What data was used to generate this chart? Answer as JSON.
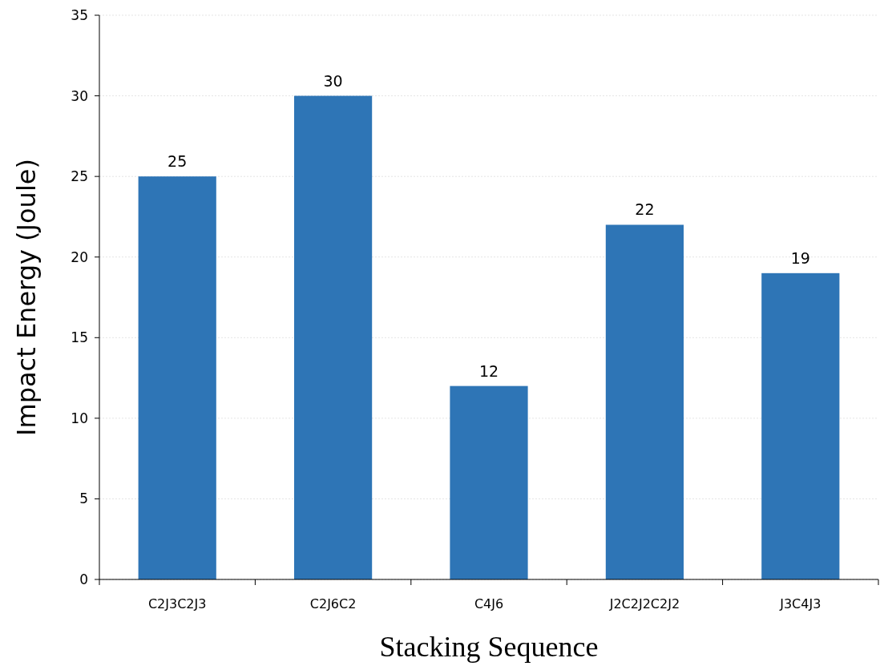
{
  "chart_data": {
    "type": "bar",
    "xlabel": "Stacking Sequence",
    "ylabel": "Impact Energy (Joule)",
    "categories": [
      "C2J3C2J3",
      "C2J6C2",
      "C4J6",
      "J2C2J2C2J2",
      "J3C4J3"
    ],
    "values": [
      25,
      30,
      12,
      22,
      19
    ],
    "color": "#2e75b6",
    "ylim": [
      0,
      35
    ],
    "yticks": [
      0,
      5,
      10,
      15,
      20,
      25,
      30,
      35
    ],
    "grid": "y",
    "data_labels": true
  }
}
